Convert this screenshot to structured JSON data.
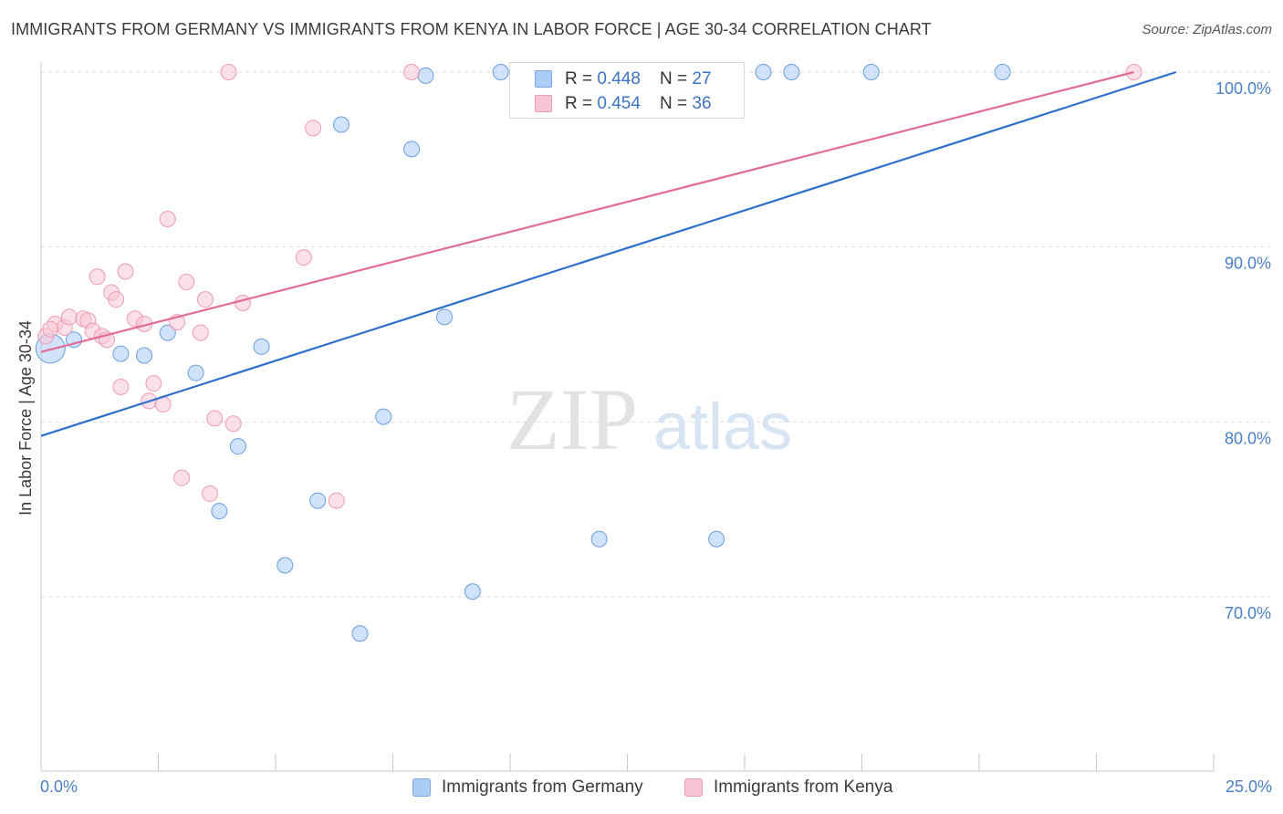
{
  "title": "IMMIGRANTS FROM GERMANY VS IMMIGRANTS FROM KENYA IN LABOR FORCE | AGE 30-34 CORRELATION CHART",
  "source": "Source: ZipAtlas.com",
  "watermark": {
    "zip": "ZIP",
    "atlas": "atlas"
  },
  "stats": [
    {
      "r_label": "R = ",
      "r": "0.448",
      "n_label": "N = ",
      "n": "27",
      "color": "#aaccf5"
    },
    {
      "r_label": "R = ",
      "r": "0.454",
      "n_label": "N = ",
      "n": "36",
      "color": "#f7bccd"
    }
  ],
  "legend": [
    {
      "label": "Immigrants from Germany",
      "color": "#aaccf5",
      "border": "#7aa8e0"
    },
    {
      "label": "Immigrants from Kenya",
      "color": "#f7c6d4",
      "border": "#ee9cb6"
    }
  ],
  "chart_data": {
    "type": "scatter",
    "title": "IMMIGRANTS FROM GERMANY VS IMMIGRANTS FROM KENYA IN LABOR FORCE | AGE 30-34 CORRELATION CHART",
    "xlabel": "",
    "ylabel": "In Labor Force | Age 30-34",
    "xlim": [
      0,
      25
    ],
    "ylim": [
      60,
      101
    ],
    "x_tick_labels": [
      "0.0%",
      "25.0%"
    ],
    "y_ticks": [
      {
        "value": 70,
        "label": "70.0%"
      },
      {
        "value": 80,
        "label": "80.0%"
      },
      {
        "value": 90,
        "label": "90.0%"
      },
      {
        "value": 100,
        "label": "100.0%"
      }
    ],
    "grid": true,
    "legend_position": "bottom",
    "series": [
      {
        "name": "Immigrants from Germany",
        "color": "#aaccf5",
        "stroke": "#6a9ee0",
        "line_color": "#2e6fcc",
        "trend": {
          "x": [
            0,
            24.2
          ],
          "y": [
            79.2,
            100.0
          ]
        },
        "points": [
          [
            0.2,
            84.2,
            3
          ],
          [
            0.7,
            84.7,
            1
          ],
          [
            1.7,
            83.9,
            1
          ],
          [
            2.2,
            83.8,
            1
          ],
          [
            2.7,
            85.1,
            1
          ],
          [
            3.3,
            82.8,
            1
          ],
          [
            3.8,
            74.9,
            1
          ],
          [
            4.2,
            78.6,
            1
          ],
          [
            4.7,
            84.3,
            1
          ],
          [
            5.2,
            71.8,
            1
          ],
          [
            5.9,
            75.5,
            1
          ],
          [
            6.4,
            97.0,
            1
          ],
          [
            6.8,
            67.9,
            1
          ],
          [
            7.3,
            80.3,
            1
          ],
          [
            7.9,
            95.6,
            1
          ],
          [
            8.2,
            99.8,
            1
          ],
          [
            8.6,
            86.0,
            1
          ],
          [
            9.2,
            70.3,
            1
          ],
          [
            9.8,
            100.0,
            1
          ],
          [
            11.3,
            100.0,
            1
          ],
          [
            11.9,
            73.3,
            1
          ],
          [
            14.4,
            73.3,
            1
          ],
          [
            15.4,
            100.0,
            1
          ],
          [
            16.0,
            100.0,
            1
          ],
          [
            17.7,
            100.0,
            1
          ],
          [
            20.5,
            100.0,
            1
          ]
        ]
      },
      {
        "name": "Immigrants from Kenya",
        "color": "#f7c6d4",
        "stroke": "#ee9cb6",
        "line_color": "#e06c97",
        "trend": {
          "x": [
            0,
            23.3
          ],
          "y": [
            84.0,
            100.0
          ]
        },
        "points": [
          [
            0.1,
            84.9,
            1
          ],
          [
            0.3,
            85.6,
            1
          ],
          [
            0.5,
            85.4,
            1
          ],
          [
            0.6,
            86.0,
            1
          ],
          [
            0.9,
            85.9,
            1
          ],
          [
            1.0,
            85.8,
            1
          ],
          [
            1.1,
            85.2,
            1
          ],
          [
            1.2,
            88.3,
            1
          ],
          [
            1.3,
            84.9,
            1
          ],
          [
            1.4,
            84.7,
            1
          ],
          [
            1.5,
            87.4,
            1
          ],
          [
            1.6,
            87.0,
            1
          ],
          [
            1.7,
            82.0,
            1
          ],
          [
            1.8,
            88.6,
            1
          ],
          [
            2.0,
            85.9,
            1
          ],
          [
            2.2,
            85.6,
            1
          ],
          [
            2.3,
            81.2,
            1
          ],
          [
            2.4,
            82.2,
            1
          ],
          [
            2.6,
            81.0,
            1
          ],
          [
            2.7,
            91.6,
            1
          ],
          [
            2.9,
            85.7,
            1
          ],
          [
            3.0,
            76.8,
            1
          ],
          [
            3.1,
            88.0,
            1
          ],
          [
            3.4,
            85.1,
            1
          ],
          [
            3.5,
            87.0,
            1
          ],
          [
            3.6,
            75.9,
            1
          ],
          [
            3.7,
            80.2,
            1
          ],
          [
            4.0,
            100.0,
            1
          ],
          [
            4.1,
            79.9,
            1
          ],
          [
            4.3,
            86.8,
            1
          ],
          [
            5.6,
            89.4,
            1
          ],
          [
            5.8,
            96.8,
            1
          ],
          [
            6.3,
            75.5,
            1
          ],
          [
            7.9,
            100.0,
            1
          ],
          [
            23.3,
            100.0,
            1
          ],
          [
            0.2,
            85.3,
            1
          ]
        ]
      }
    ]
  }
}
